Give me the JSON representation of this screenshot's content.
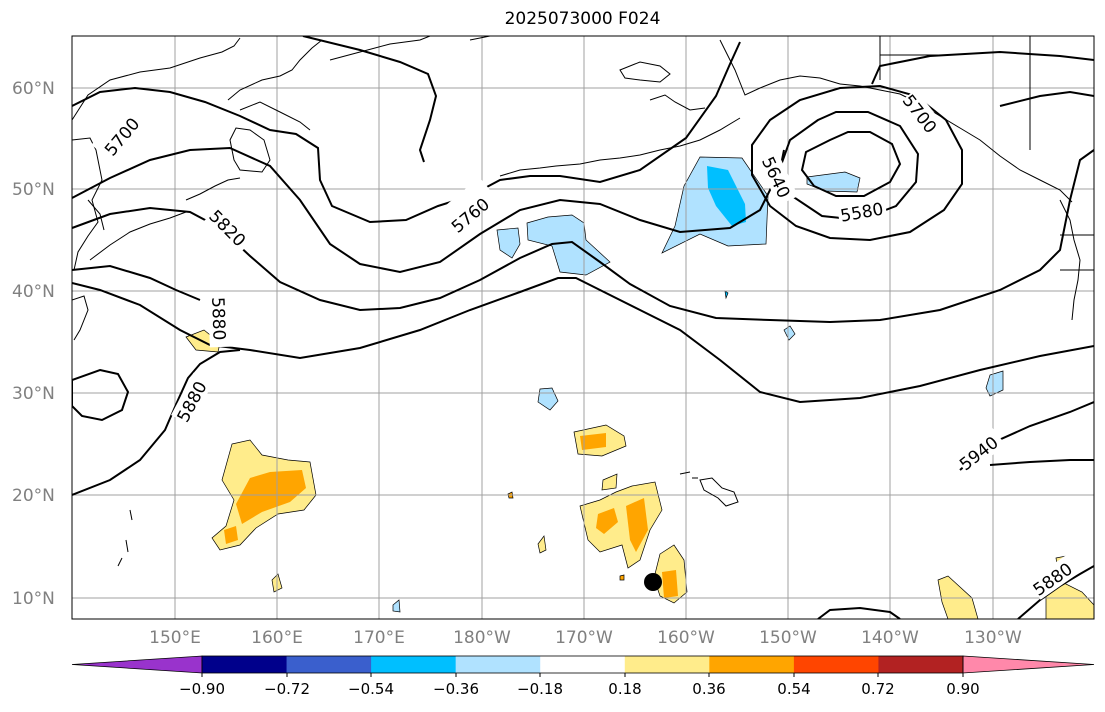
{
  "title": "2025073000 F024",
  "lat_labels": [
    "60°N",
    "50°N",
    "40°N",
    "30°N",
    "20°N",
    "10°N"
  ],
  "lon_labels": [
    "150°E",
    "160°E",
    "170°E",
    "180°W",
    "170°W",
    "160°W",
    "150°W",
    "140°W",
    "130°W"
  ],
  "contour_labels": [
    "5700",
    "5760",
    "5820",
    "5880",
    "5880",
    "5640",
    "5580",
    "5700",
    "5940",
    "5880"
  ],
  "colorbar": {
    "ticks": [
      "−0.90",
      "−0.72",
      "−0.54",
      "−0.36",
      "−0.18",
      "0.18",
      "0.36",
      "0.54",
      "0.72",
      "0.90"
    ],
    "colors": [
      "#9933cc",
      "#00008b",
      "#3a5fcd",
      "#00bfff",
      "#b0e2ff",
      "#ffffff",
      "#ffec8b",
      "#ffa500",
      "#ff4500",
      "#b22222",
      "#ff88aa"
    ]
  },
  "marker": "storm-center-dot"
}
